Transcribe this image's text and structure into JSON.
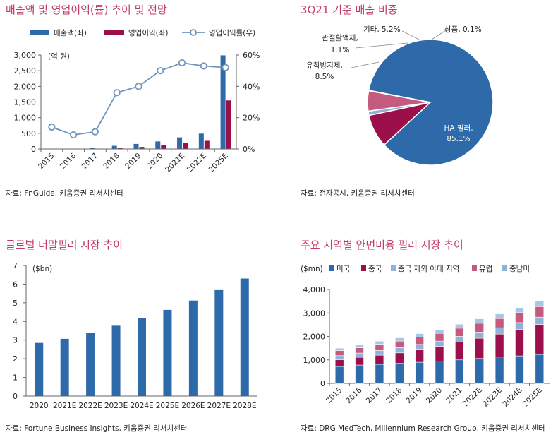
{
  "colors": {
    "title": "#c0396b",
    "blue": "#2e6aa9",
    "maroon": "#9b0f4a",
    "line": "#6f95bd",
    "pink": "#c45a7e",
    "lightblue": "#8db3d9",
    "gray": "#8c8c8c"
  },
  "chart_data": [
    {
      "id": "c1",
      "type": "bar",
      "title": "매출액 및 영업이익(률) 추이 및 전망",
      "unit_label": "(억 원)",
      "categories": [
        "2015",
        "2016",
        "2017",
        "2018",
        "2019",
        "2020",
        "2021E",
        "2022E",
        "2025E"
      ],
      "series": [
        {
          "name": "매출액(좌)",
          "kind": "bar",
          "axis": "left",
          "color": "#2e6aa9",
          "values": [
            7,
            12,
            28,
            100,
            160,
            240,
            370,
            490,
            2990
          ]
        },
        {
          "name": "영업이익(좌)",
          "kind": "bar",
          "axis": "left",
          "color": "#9b0f4a",
          "values": [
            1,
            1,
            3,
            36,
            64,
            120,
            200,
            260,
            1550
          ]
        },
        {
          "name": "영업이익률(우)",
          "kind": "line",
          "axis": "right",
          "color": "#6f95bd",
          "values": [
            14,
            9,
            11,
            36,
            40,
            50,
            55,
            53,
            52
          ]
        }
      ],
      "ylim": [
        0,
        3000
      ],
      "yticks": [
        "0",
        "500",
        "1,000",
        "1,500",
        "2,000",
        "2,500",
        "3,000"
      ],
      "y2lim": [
        0,
        60
      ],
      "y2ticks": [
        "0%",
        "20%",
        "40%",
        "60%"
      ],
      "legend": "top",
      "source": "자료: FnGuide,  키움증권  리서치센터"
    },
    {
      "id": "c2",
      "type": "pie",
      "title": "3Q21 기준 매출 비중",
      "slices": [
        {
          "label": "HA 필러,",
          "value_label": "85.1%",
          "value": 85.1,
          "color": "#2e6aa9"
        },
        {
          "label": "유착방지제,",
          "value_label": "8.5%",
          "value": 8.5,
          "color": "#9b0f4a"
        },
        {
          "label": "관절활액제,",
          "value_label": "1.1%",
          "value": 1.1,
          "color": "#8db3d9"
        },
        {
          "label": "기타, 5.2%",
          "value_label": "",
          "value": 5.2,
          "color": "#c45a7e"
        },
        {
          "label": "상품, 0.1%",
          "value_label": "",
          "value": 0.1,
          "color": "#8c8c8c"
        }
      ],
      "source": "자료: 전자공시,  키움증권  리서치센터"
    },
    {
      "id": "c3",
      "type": "bar",
      "title": "글로벌 더말필러 시장 추이",
      "unit_label": "($bn)",
      "categories": [
        "2020",
        "2021E",
        "2022E",
        "2023E",
        "2024E",
        "2025E",
        "2026E",
        "2027E",
        "2028E"
      ],
      "values": [
        2.85,
        3.07,
        3.4,
        3.77,
        4.17,
        4.62,
        5.12,
        5.68,
        6.3
      ],
      "ylim": [
        0,
        7
      ],
      "yticks": [
        "0",
        "1",
        "2",
        "3",
        "4",
        "5",
        "6",
        "7"
      ],
      "color": "#2e6aa9",
      "source": "자료: Fortune Business Insights,  키움증권  리서치센터"
    },
    {
      "id": "c4",
      "type": "bar",
      "stacked": true,
      "title": "주요 지역별 안면미용 필러 시장 추이",
      "unit_label": "($mn)",
      "categories": [
        "2015",
        "2016",
        "2017",
        "2018",
        "2019",
        "2020",
        "2021",
        "2022E",
        "2023E",
        "2024E",
        "2025E"
      ],
      "series": [
        {
          "name": "미국",
          "color": "#2e6aa9",
          "values": [
            720,
            780,
            810,
            850,
            900,
            950,
            1000,
            1060,
            1120,
            1170,
            1230
          ]
        },
        {
          "name": "중국",
          "color": "#9b0f4a",
          "values": [
            290,
            330,
            390,
            450,
            530,
            630,
            760,
            860,
            980,
            1120,
            1280
          ]
        },
        {
          "name": "중국 제외 아태 지역",
          "color": "#8db3d9",
          "values": [
            170,
            180,
            200,
            220,
            230,
            220,
            240,
            260,
            270,
            300,
            310
          ]
        },
        {
          "name": "유럽",
          "color": "#c45a7e",
          "values": [
            220,
            230,
            270,
            280,
            310,
            330,
            350,
            380,
            390,
            420,
            450
          ]
        },
        {
          "name": "중남미",
          "color": "#8db3d9",
          "values": [
            100,
            120,
            130,
            140,
            150,
            160,
            170,
            190,
            200,
            220,
            250
          ]
        }
      ],
      "ylim": [
        0,
        4000
      ],
      "yticks": [
        "0",
        "1,000",
        "2,000",
        "3,000",
        "4,000"
      ],
      "legend": "top",
      "source": "자료: DRG MedTech,  Millennium Research Group,  키움증권  리서치센터"
    }
  ]
}
